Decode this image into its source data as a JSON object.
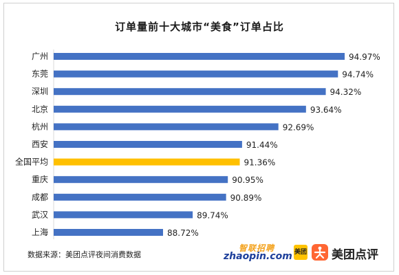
{
  "chart_data": {
    "type": "bar",
    "orientation": "horizontal",
    "title": "订单量前十大城市“美食”订单占比",
    "categories": [
      "广州",
      "东莞",
      "深圳",
      "北京",
      "杭州",
      "西安",
      "全国平均",
      "重庆",
      "成都",
      "武汉",
      "上海"
    ],
    "values": [
      94.97,
      94.74,
      94.32,
      93.64,
      92.69,
      91.44,
      91.36,
      90.95,
      90.89,
      89.74,
      88.72
    ],
    "value_labels": [
      "94.97%",
      "94.74%",
      "94.32%",
      "93.64%",
      "92.69%",
      "91.44%",
      "91.36%",
      "90.95%",
      "90.89%",
      "89.74%",
      "88.72%"
    ],
    "highlight_category": "全国平均",
    "colors": {
      "bar": "#4472c4",
      "highlight": "#ffc000"
    },
    "grid": false,
    "legend": "none"
  },
  "footer": {
    "source": "数据来源：美团点评夜间消费数据",
    "logo_zhaopin_cn": "智联招聘",
    "logo_zhaopin_en": "zhaopin.com",
    "logo_meituan": "美团",
    "logo_dianping": "美团点评"
  }
}
